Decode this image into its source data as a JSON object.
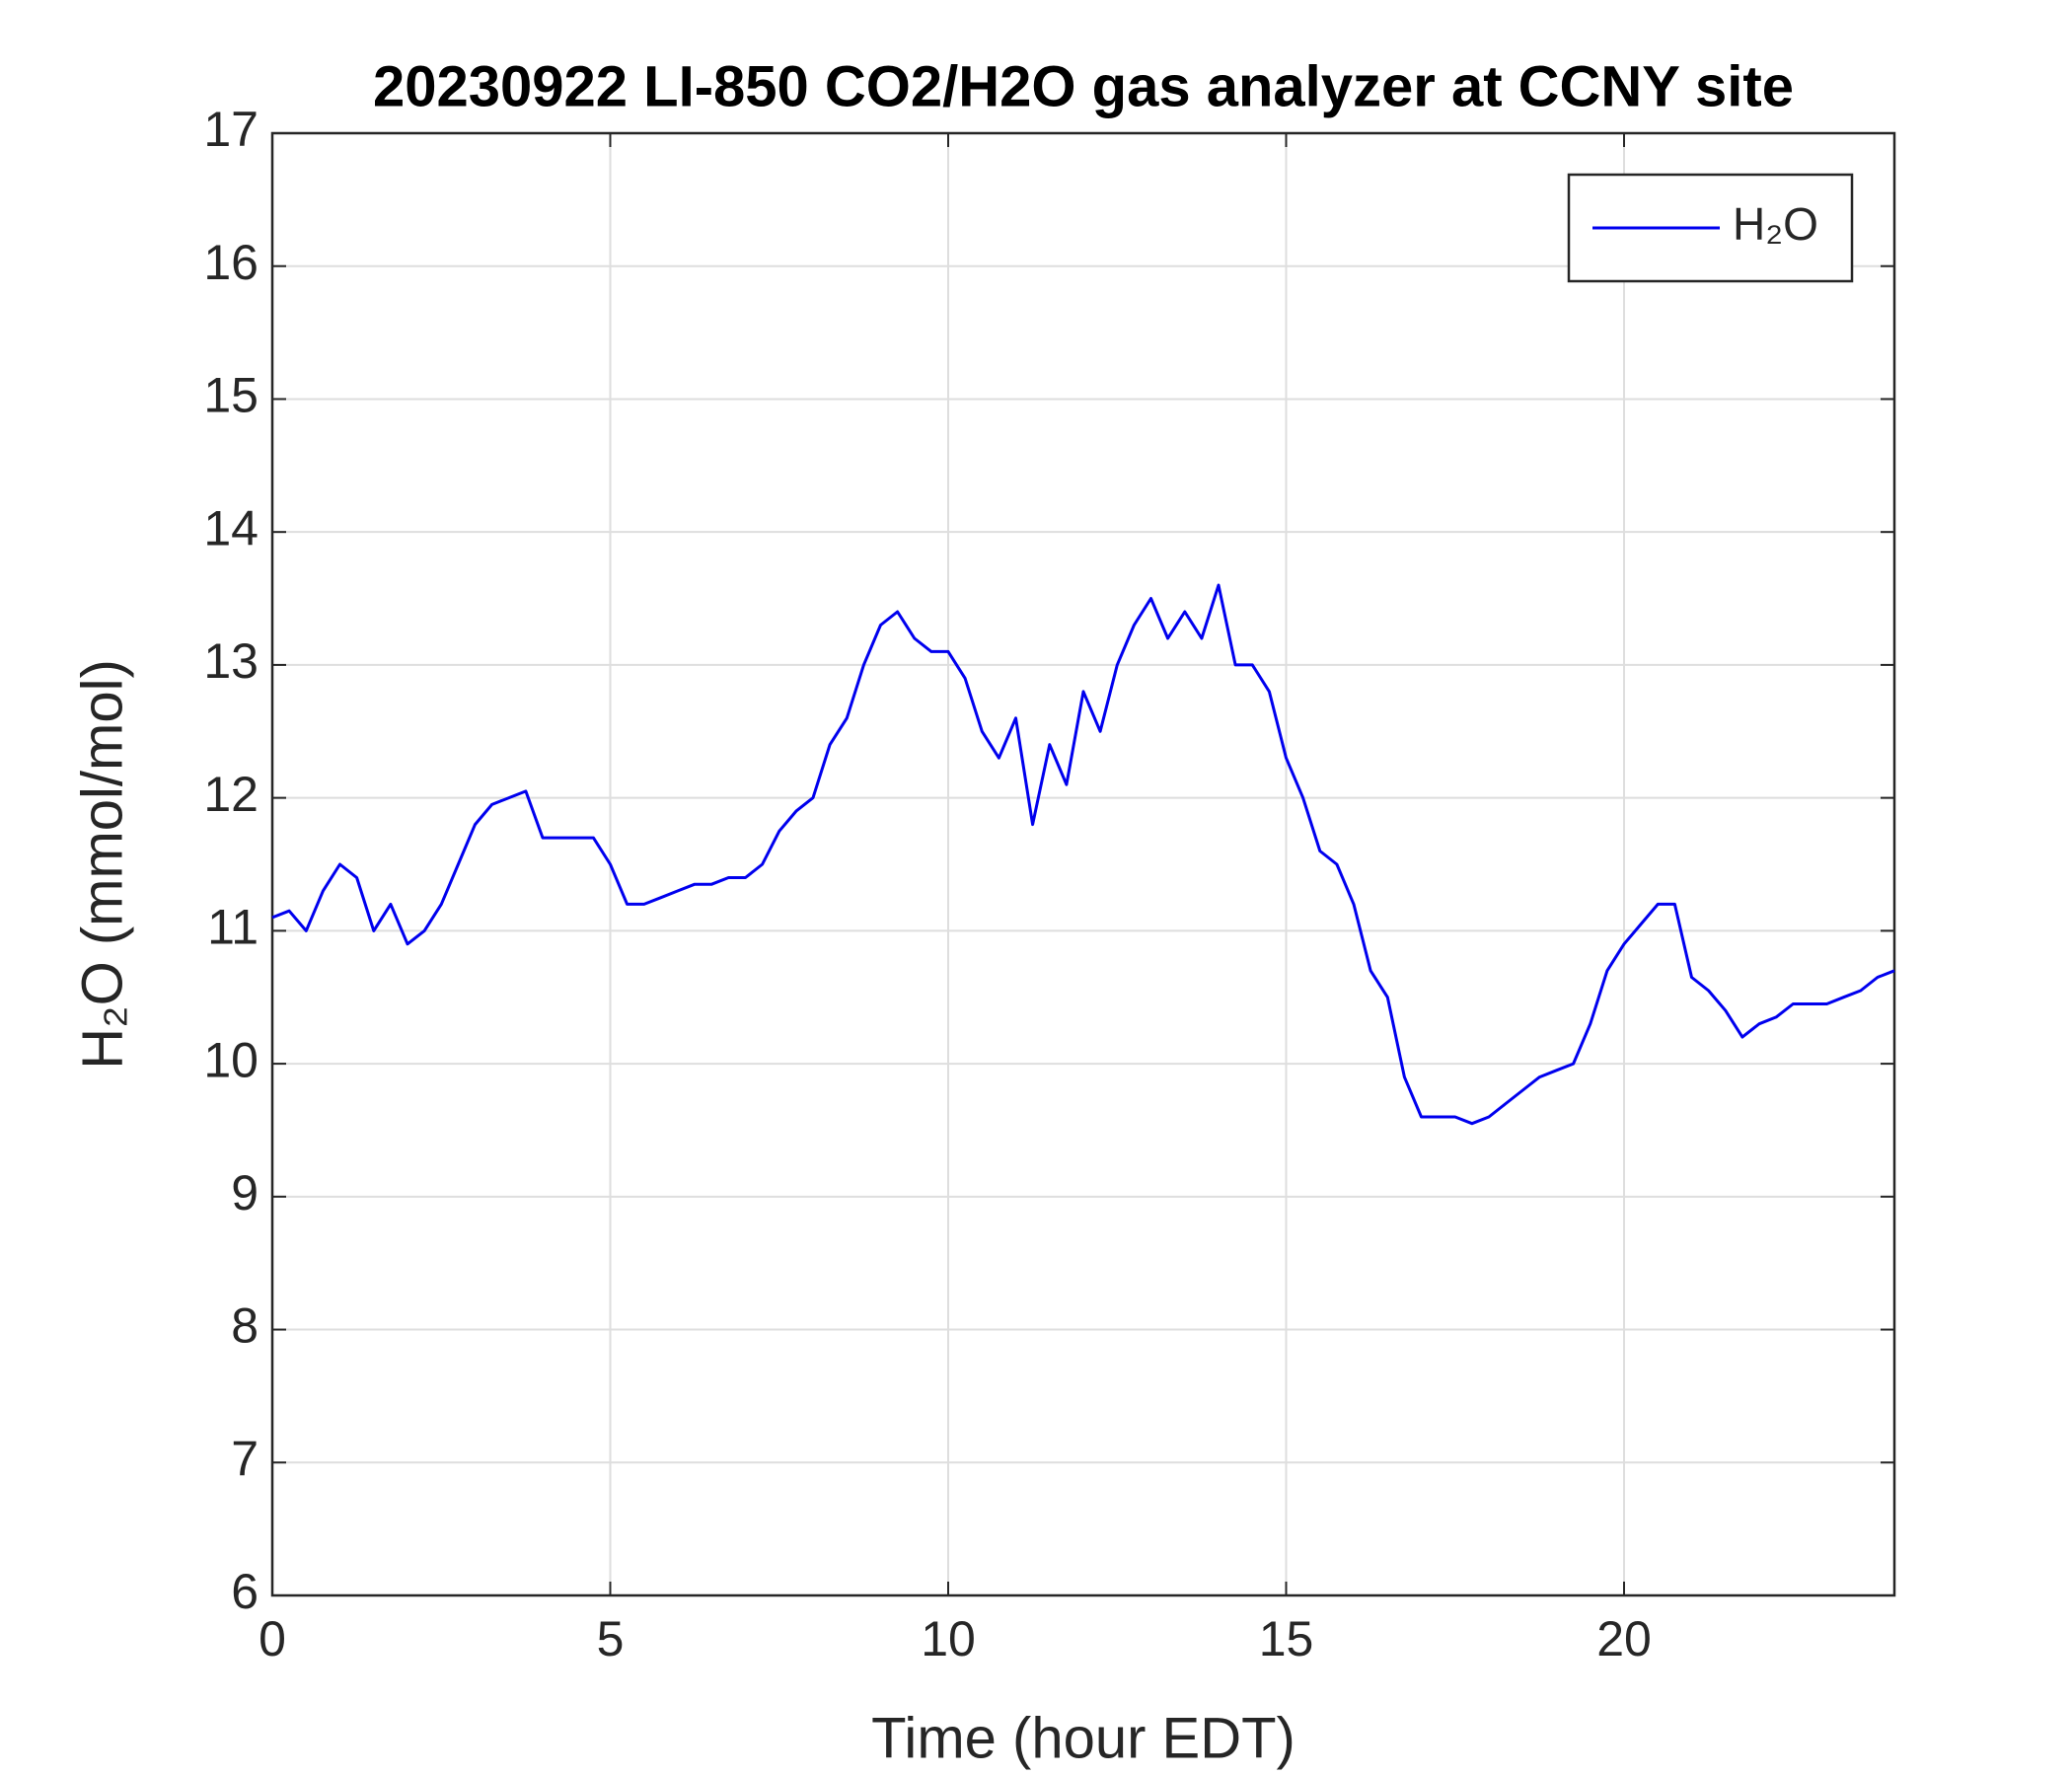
{
  "chart_data": {
    "type": "line",
    "title": "20230922 LI-850 CO2/H2O gas analyzer at CCNY site",
    "x_label": "Time (hour EDT)",
    "y_label": "H₂O (mmol/mol)",
    "x": [
      0,
      0.25,
      0.5,
      0.75,
      1,
      1.25,
      1.5,
      1.75,
      2,
      2.25,
      2.5,
      2.75,
      3,
      3.25,
      3.5,
      3.75,
      4,
      4.25,
      4.5,
      4.75,
      5,
      5.25,
      5.5,
      5.75,
      6,
      6.25,
      6.5,
      6.75,
      7,
      7.25,
      7.5,
      7.75,
      8,
      8.25,
      8.5,
      8.75,
      9,
      9.25,
      9.5,
      9.75,
      10,
      10.25,
      10.5,
      10.75,
      11,
      11.25,
      11.5,
      11.75,
      12,
      12.25,
      12.5,
      12.75,
      13,
      13.25,
      13.5,
      13.75,
      14,
      14.25,
      14.5,
      14.75,
      15,
      15.25,
      15.5,
      15.75,
      16,
      16.25,
      16.5,
      16.75,
      17,
      17.25,
      17.5,
      17.75,
      18,
      18.25,
      18.5,
      18.75,
      19,
      19.25,
      19.5,
      19.75,
      20,
      20.25,
      20.5,
      20.75,
      21,
      21.25,
      21.5,
      21.75,
      22,
      22.25,
      22.5,
      22.75,
      23,
      23.25,
      23.5,
      23.75,
      24
    ],
    "series": [
      {
        "name": "H₂O",
        "color": "#0000ee",
        "values": [
          11.1,
          11.15,
          11.0,
          11.3,
          11.5,
          11.4,
          11.0,
          11.2,
          10.9,
          11.0,
          11.2,
          11.5,
          11.8,
          11.95,
          12.0,
          12.05,
          11.7,
          11.7,
          11.7,
          11.7,
          11.5,
          11.2,
          11.2,
          11.25,
          11.3,
          11.35,
          11.35,
          11.4,
          11.4,
          11.5,
          11.75,
          11.9,
          12.0,
          12.4,
          12.6,
          13.0,
          13.3,
          13.4,
          13.2,
          13.1,
          13.1,
          12.9,
          12.5,
          12.3,
          12.6,
          11.8,
          12.4,
          12.1,
          12.8,
          12.5,
          13.0,
          13.3,
          13.5,
          13.2,
          13.4,
          13.2,
          13.6,
          13.0,
          13.0,
          12.8,
          12.3,
          12.0,
          11.6,
          11.5,
          11.2,
          10.7,
          10.5,
          9.9,
          9.6,
          9.6,
          9.6,
          9.55,
          9.6,
          9.7,
          9.8,
          9.9,
          9.95,
          10.0,
          10.3,
          10.7,
          10.9,
          11.05,
          11.2,
          11.2,
          10.65,
          10.55,
          10.4,
          10.2,
          10.3,
          10.35,
          10.45,
          10.45,
          10.45,
          10.5,
          10.55,
          10.65,
          10.7
        ]
      }
    ],
    "xlim": [
      0,
      24
    ],
    "xticks": [
      0,
      5,
      10,
      15,
      20
    ],
    "ylim": [
      6,
      17
    ],
    "yticks": [
      6,
      7,
      8,
      9,
      10,
      11,
      12,
      13,
      14,
      15,
      16,
      17
    ],
    "grid": true,
    "legend": "upper right"
  }
}
